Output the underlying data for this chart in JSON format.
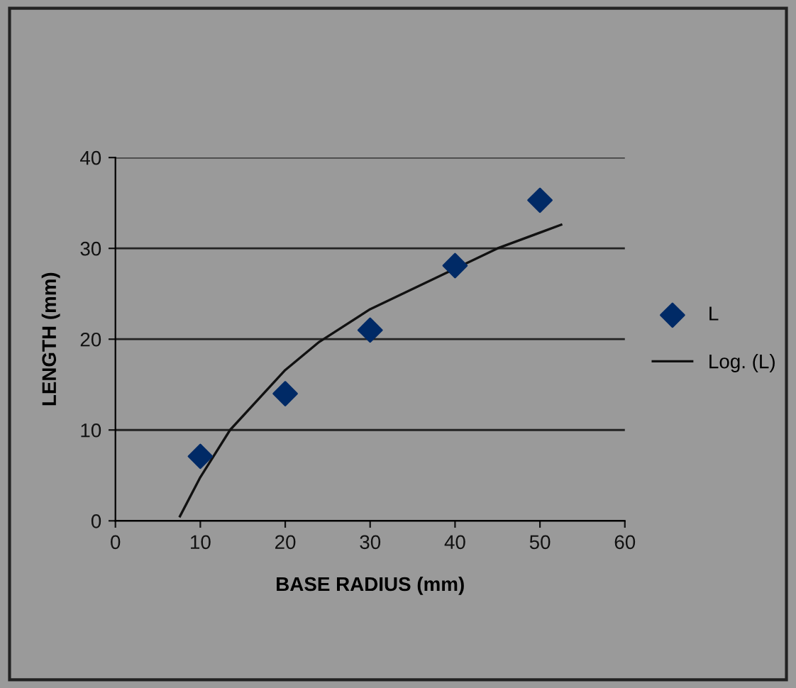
{
  "chart_data": {
    "type": "scatter",
    "xlabel": "BASE RADIUS (mm)",
    "ylabel": "LENGTH (mm)",
    "series": [
      {
        "name": "L",
        "color": "#002a66",
        "marker": "diamond",
        "x": [
          10,
          20,
          30,
          40,
          50
        ],
        "values": [
          7.1,
          14.0,
          21.0,
          28.1,
          35.3
        ]
      },
      {
        "name": "Log. (L)",
        "type": "line",
        "color": "#111111",
        "marker": "none",
        "line_style": "solid",
        "x": [
          7.6,
          10,
          13.5,
          20,
          24,
          30,
          45,
          52.5
        ],
        "values": [
          0.5,
          4.8,
          10,
          16.6,
          19.7,
          23.3,
          30,
          32.6
        ]
      }
    ],
    "xlim": [
      0,
      60
    ],
    "xticks": [
      0,
      10,
      20,
      30,
      40,
      50,
      60
    ],
    "ylim": [
      0,
      40
    ],
    "yticks": [
      0,
      10,
      20,
      30,
      40
    ],
    "grid": "y",
    "legend": "right"
  }
}
